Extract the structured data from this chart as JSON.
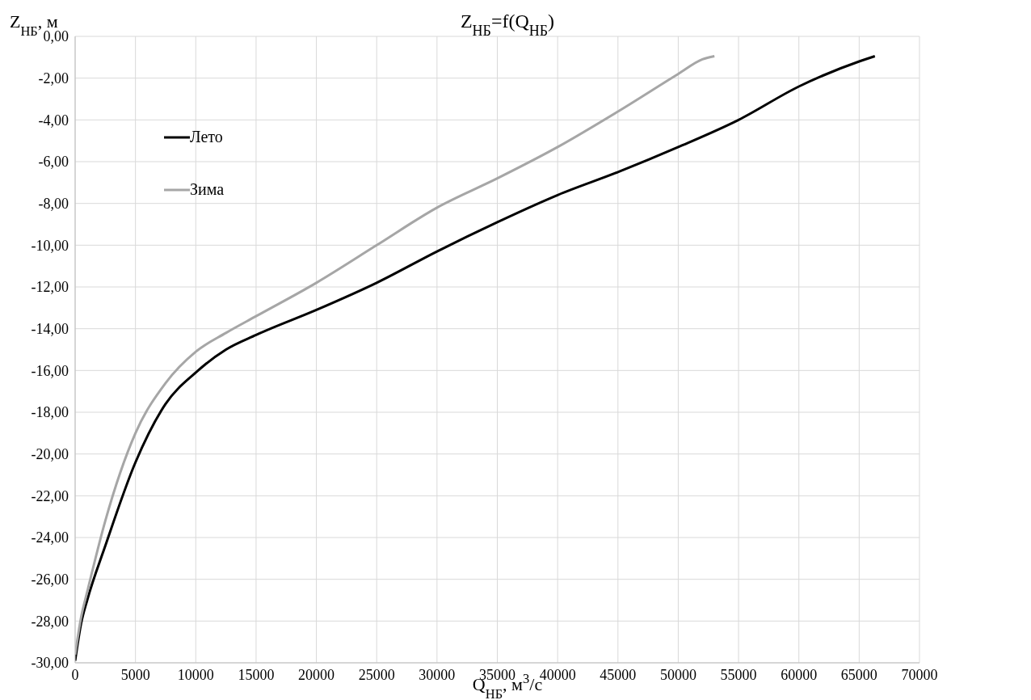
{
  "chart_data": {
    "type": "line",
    "title": "Z$_{НБ}$=f(Q$_{НБ}$)",
    "xlabel": "Q$_{НБ}$, м$^{3}$/с",
    "ylabel": "Z$_{НБ}$, м",
    "xlim": [
      0,
      70000
    ],
    "xticks": [
      0,
      5000,
      10000,
      15000,
      20000,
      25000,
      30000,
      35000,
      40000,
      45000,
      50000,
      55000,
      60000,
      65000,
      70000
    ],
    "ylim": [
      -30,
      0
    ],
    "yticks": [
      {
        "value": 0,
        "label": "0,00"
      },
      {
        "value": -2,
        "label": "-2,00"
      },
      {
        "value": -4,
        "label": "-4,00"
      },
      {
        "value": -6,
        "label": "-6,00"
      },
      {
        "value": -8,
        "label": "-8,00"
      },
      {
        "value": -10,
        "label": "-10,00"
      },
      {
        "value": -12,
        "label": "-12,00"
      },
      {
        "value": -14,
        "label": "-14,00"
      },
      {
        "value": -16,
        "label": "-16,00"
      },
      {
        "value": -18,
        "label": "-18,00"
      },
      {
        "value": -20,
        "label": "-20,00"
      },
      {
        "value": -22,
        "label": "-22,00"
      },
      {
        "value": -24,
        "label": "-24,00"
      },
      {
        "value": -26,
        "label": "-26,00"
      },
      {
        "value": -28,
        "label": "-28,00"
      },
      {
        "value": -30,
        "label": "-30,00"
      }
    ],
    "grid": true,
    "legend": "top left",
    "marker": "none",
    "line_style": "solid",
    "series": [
      {
        "name": "Лето",
        "color": "#000000",
        "x": [
          0,
          500,
          1000,
          2500,
          5000,
          7500,
          10000,
          12500,
          15000,
          20000,
          25000,
          30000,
          35000,
          40000,
          45000,
          50000,
          55000,
          60000,
          65000,
          66300
        ],
        "values": [
          -29.9,
          -28.1,
          -27.0,
          -24.4,
          -20.4,
          -17.6,
          -16.1,
          -15.0,
          -14.3,
          -13.1,
          -11.8,
          -10.3,
          -8.9,
          -7.6,
          -6.5,
          -5.3,
          -4.0,
          -2.4,
          -1.2,
          -0.95
        ]
      },
      {
        "name": "Зима",
        "color": "#a6a6a6",
        "x": [
          0,
          500,
          1000,
          2500,
          5000,
          7500,
          10000,
          12500,
          15000,
          20000,
          25000,
          30000,
          35000,
          40000,
          45000,
          50000,
          52000,
          53000
        ],
        "values": [
          -29.6,
          -27.8,
          -26.6,
          -23.2,
          -19.0,
          -16.6,
          -15.1,
          -14.2,
          -13.4,
          -11.8,
          -10.0,
          -8.2,
          -6.8,
          -5.3,
          -3.6,
          -1.8,
          -1.1,
          -0.95
        ]
      }
    ]
  }
}
